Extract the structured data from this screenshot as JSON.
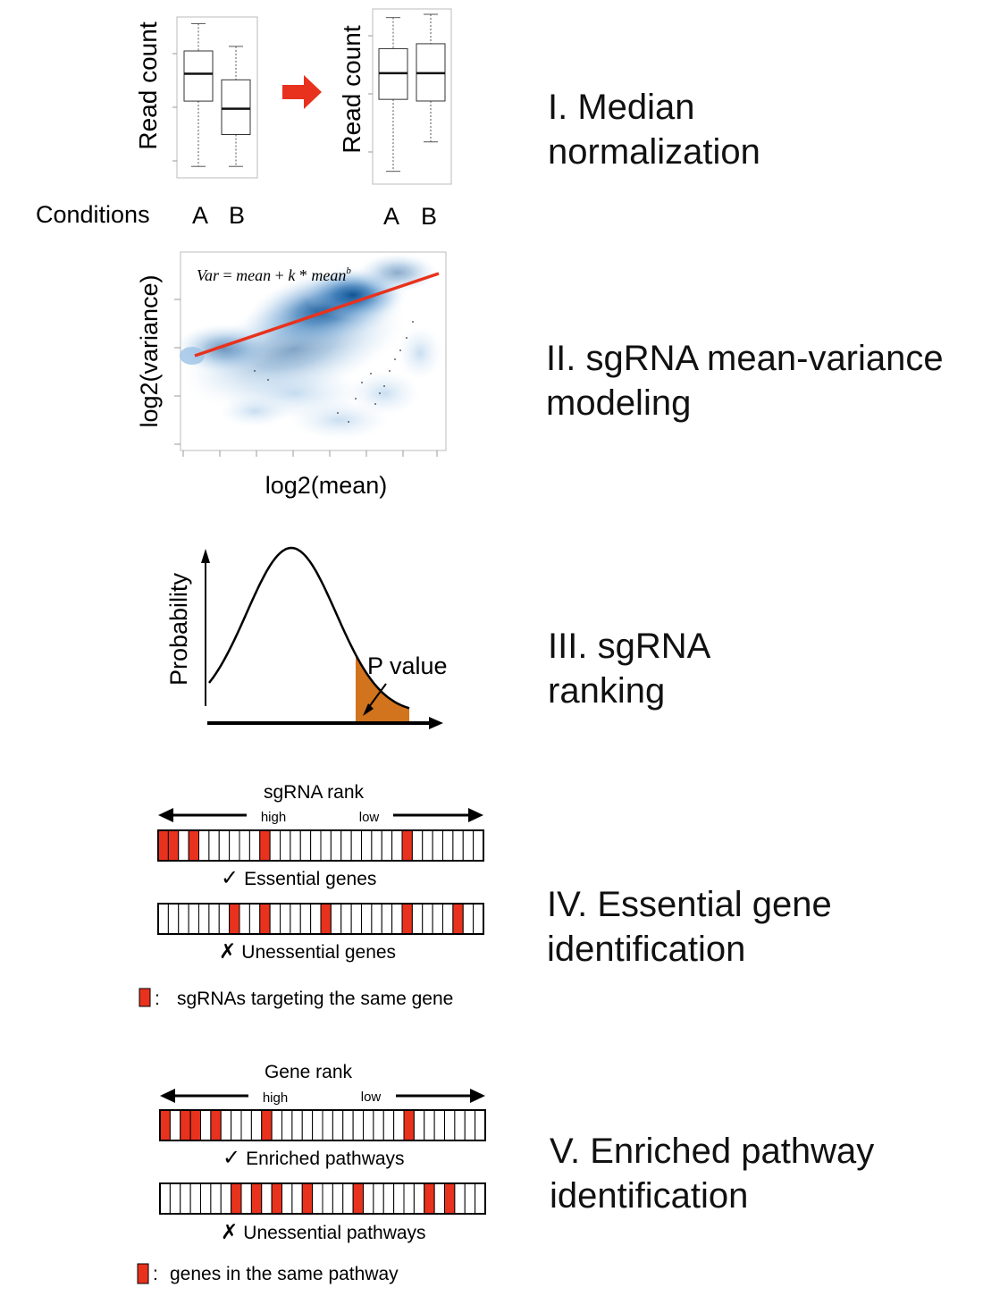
{
  "steps": [
    {
      "id": "I",
      "title_line1": "I. Median",
      "title_line2": "normalization",
      "ylabel_left": "Read count",
      "ylabel_right": "Read count",
      "xlabel": "Conditions",
      "categories": [
        "A",
        "B"
      ],
      "arrow_color": "#e8321d",
      "boxplot_before": [
        {
          "condition": "A",
          "min": 0.04,
          "q1": 0.47,
          "median": 0.65,
          "q3": 0.8,
          "max": 0.98
        },
        {
          "condition": "B",
          "min": 0.04,
          "q1": 0.25,
          "median": 0.42,
          "q3": 0.61,
          "max": 0.83
        }
      ],
      "boxplot_after": [
        {
          "condition": "A",
          "min": 0.04,
          "q1": 0.48,
          "median": 0.64,
          "q3": 0.79,
          "max": 0.98
        },
        {
          "condition": "B",
          "min": 0.22,
          "q1": 0.47,
          "median": 0.64,
          "q3": 0.82,
          "max": 1.0
        }
      ]
    },
    {
      "id": "II",
      "title_line1": "II. sgRNA mean-variance",
      "title_line2": "modeling",
      "xlabel": "log2(mean)",
      "ylabel": "log2(variance)",
      "formula_var": "Var",
      "formula_eq": " = ",
      "formula_mean": "mean",
      "formula_plus": " + ",
      "formula_k": "k",
      "formula_times": " * ",
      "formula_mean2": "mean",
      "formula_exp": "b",
      "fit_line_color": "#e8321d",
      "density_color": "#0b4f8f"
    },
    {
      "id": "III",
      "title_line1": "III. sgRNA",
      "title_line2": "ranking",
      "ylabel": "Probability",
      "pvalue_label": "P value",
      "tail_color": "#d2731d"
    },
    {
      "id": "IV",
      "title_line1": "IV. Essential gene",
      "title_line2": "identification",
      "rank_title": "sgRNA rank",
      "high_label": "high",
      "low_label": "low",
      "check_mark": "✓",
      "cross_mark": "✗",
      "row1_label": "Essential genes",
      "row2_label": "Unessential genes",
      "legend_text": "sgRNAs targeting the same gene",
      "legend_colon": ":",
      "cells": 32,
      "row1_red": [
        0,
        1,
        3,
        10,
        24
      ],
      "row2_red": [
        7,
        10,
        16,
        24,
        29
      ],
      "red_color": "#e8321d"
    },
    {
      "id": "V",
      "title_line1": "V. Enriched pathway",
      "title_line2": "identification",
      "rank_title": "Gene rank",
      "high_label": "high",
      "low_label": "low",
      "check_mark": "✓",
      "cross_mark": "✗",
      "row1_label": "Enriched pathways",
      "row2_label": "Unessential pathways",
      "legend_text": "genes in the same pathway",
      "legend_colon": ":",
      "cells": 32,
      "row1_red": [
        0,
        2,
        3,
        5,
        10,
        24
      ],
      "row2_red": [
        7,
        9,
        11,
        14,
        19,
        26,
        28
      ],
      "red_color": "#e8321d"
    }
  ]
}
